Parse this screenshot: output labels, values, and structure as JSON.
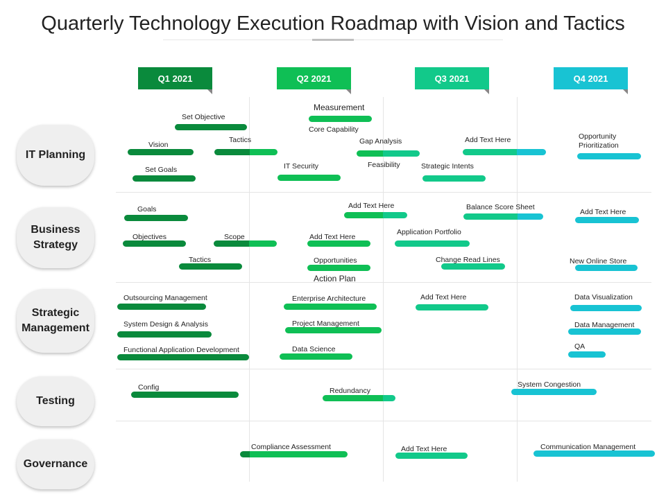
{
  "title": "Quarterly Technology Execution Roadmap with Vision and Tactics",
  "colors": {
    "q1": "#0a8a3c",
    "q2": "#0fbf55",
    "q3": "#12c98a",
    "q4": "#18c3d3"
  },
  "quarters": [
    {
      "label": "Q1 2021",
      "color": "#0a8a3c"
    },
    {
      "label": "Q2 2021",
      "color": "#0fbf55"
    },
    {
      "label": "Q3 2021",
      "color": "#12c98a"
    },
    {
      "label": "Q4 2021",
      "color": "#18c3d3"
    }
  ],
  "categories": [
    "IT Planning",
    "Business\nStrategy",
    "Strategic\nManagement",
    "Testing",
    "Governance"
  ],
  "tasks": [
    "Set Objective",
    "Vision",
    "Tactics",
    "Set Goals",
    "Measurement",
    "Core Capability",
    "IT Security",
    "Gap Analysis",
    "Feasibility",
    "Add Text Here",
    "Strategic Intents",
    "Opportunity\nPrioritization",
    "Goals",
    "Objectives",
    "Scope",
    "Tactics",
    "Add Text Here",
    "Add Text Here",
    "Opportunities",
    "Action Plan",
    "Application Portfolio",
    "Balance Score Sheet",
    "Change Read Lines",
    "Add Text Here",
    "New Online Store",
    "Outsourcing Management",
    "System Design & Analysis",
    "Functional Application Development",
    "Enterprise Architecture",
    "Project Management",
    "Data Science",
    "Add Text Here",
    "Data Visualization",
    "Data Management",
    "QA",
    "Config",
    "Redundancy",
    "System Congestion",
    "Compliance Assessment",
    "Add Text Here",
    "Communication Management"
  ]
}
